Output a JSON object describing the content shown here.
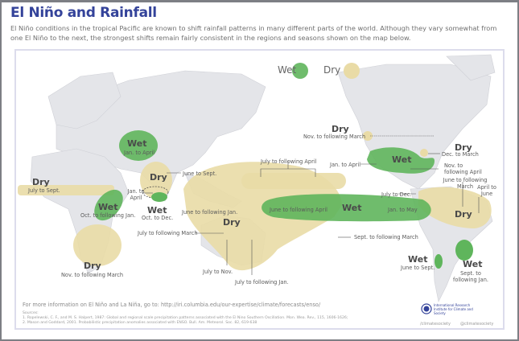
{
  "header": {
    "title": "El Niño and Rainfall",
    "description": "El Niño conditions in the tropical Pacific are known to shift rainfall patterns in many different parts of the world. Although they vary somewhat from one El Niño to the next, the strongest shifts remain fairly consistent in the regions and seasons shown on the map below."
  },
  "colors": {
    "wet": "#5fb55c",
    "dry": "#e9dba6",
    "land": "#e4e5e9",
    "title": "#34439a"
  },
  "legend": {
    "wet": "Wet",
    "dry": "Dry"
  },
  "regions": {
    "central_asia": {
      "type": "Wet",
      "season": "Jan. to April"
    },
    "india": {
      "type": "Dry",
      "season": "June to Sept."
    },
    "sri_lanka": {
      "season": "Jan. to April"
    },
    "south_india": {
      "type": "Wet",
      "season": "Oct. to Dec."
    },
    "sahel": {
      "type": "Dry",
      "season": "July to Sept."
    },
    "east_africa": {
      "type": "Wet",
      "season": "Oct. to following Jan."
    },
    "southern_africa": {
      "type": "Dry",
      "season": "Nov. to following March"
    },
    "indonesia_australia": {
      "type": "Dry",
      "season_1": "June to following Jan.",
      "season_2": "July to following March",
      "season_3": "July to Nov.",
      "season_4": "July to following Jan.",
      "season_5": "Sept. to following March"
    },
    "central_pacific_dry": {
      "season": "July to following April"
    },
    "central_pacific_wet": {
      "type": "Wet",
      "season_1": "June to following April",
      "season_2": "Jan. to May"
    },
    "nw_north_america": {
      "type": "Dry",
      "season": "Nov. to following March"
    },
    "great_lakes": {
      "type": "Dry",
      "season": "Dec. to March"
    },
    "southern_us": {
      "type": "Wet",
      "season_1": "Jan. to April",
      "season_2": "Nov. to following April"
    },
    "northern_south_america": {
      "type": "Dry",
      "season_1": "July to Dec.",
      "season_2": "June to following March",
      "season_3": "April to June"
    },
    "chile": {
      "type": "Wet",
      "season": "June to Sept."
    },
    "se_south_america": {
      "type": "Wet",
      "season": "Sept. to following Jan."
    }
  },
  "footer": {
    "more_info": "For more information on El Niño and La Niña, go to: http://iri.columbia.edu/our-expertise/climate/forecasts/enso/",
    "sources_label": "Sources:",
    "source_1": "1. Ropelewski, C. F., and M. S. Halpert, 1987: Global and regional scale precipitation patterns associated with the El Nino Southern Oscillation. Mon. Wea. Rev., 115, 1606-1626;",
    "source_2": "2. Mason and Goddard, 2001. Probabilistic precipitation anomalies associated with ENSO.  Bull. Am. Meteorol. Soc. 82, 619-638",
    "org": "International Research Institute for Climate and Society",
    "social_1": "/climatesociety",
    "social_2": "@climatesociety"
  }
}
